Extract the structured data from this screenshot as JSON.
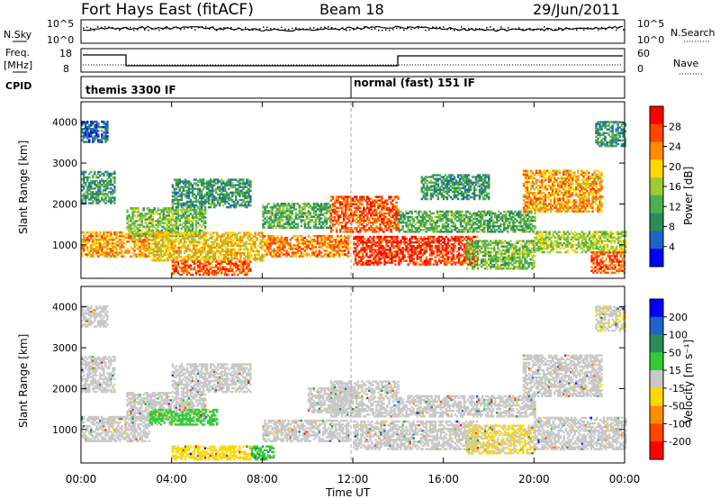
{
  "header": {
    "station": "Fort Hays East (fitACF)",
    "beam": "Beam 18",
    "date": "29/Jun/2011"
  },
  "top_panel": {
    "nsky_label": "N.Sky",
    "nsky_ticks": [
      "10^5",
      "10^0"
    ],
    "nsearch_label": "N.Search",
    "nsearch_ticks": [
      "10^5",
      "10^0"
    ],
    "freq_label": "Freq.",
    "freq_unit": "[MHz]",
    "freq_ticks": [
      "18",
      "8"
    ],
    "nave_label": "Nave",
    "nave_ticks": [
      "60",
      "0"
    ],
    "cpid_label": "CPID",
    "cpid_modes": [
      "themis 3300 IF",
      "normal (fast) 151 IF"
    ]
  },
  "colors": {
    "power": [
      "#0000ff",
      "#1e64c8",
      "#2e8b57",
      "#4caf50",
      "#9acd32",
      "#ffd700",
      "#ff8c00",
      "#ff4500",
      "#ff0000"
    ],
    "velocity": [
      "#0000ff",
      "#1e64c8",
      "#2e8b57",
      "#32cd32",
      "#c8c8c8",
      "#ffd700",
      "#ff8c00",
      "#ff4500",
      "#ff0000"
    ]
  },
  "chart_data": [
    {
      "type": "heatmap",
      "name": "power",
      "ylabel": "Slant Range [km]",
      "xlabel": "Time UT",
      "xticks": [
        "00:00",
        "04:00",
        "08:00",
        "12:00",
        "16:00",
        "20:00",
        "00:00"
      ],
      "yticks": [
        "1000",
        "2000",
        "3000",
        "4000"
      ],
      "ylim": [
        180,
        4500
      ],
      "xlim_hours": [
        0,
        24
      ],
      "colorbar_label": "Power [dB]",
      "colorbar_ticks": [
        "4",
        "8",
        "12",
        "16",
        "20",
        "24",
        "28"
      ],
      "colorbar_range": [
        0,
        32
      ],
      "echo_regions": [
        {
          "t0": 0.0,
          "t1": 1.2,
          "r0": 3500,
          "r1": 4000,
          "value": 6
        },
        {
          "t0": 0.0,
          "t1": 1.5,
          "r0": 2000,
          "r1": 2800,
          "value": 10
        },
        {
          "t0": 0.0,
          "t1": 3.0,
          "r0": 700,
          "r1": 1300,
          "value": 22
        },
        {
          "t0": 2.0,
          "t1": 5.5,
          "r0": 1200,
          "r1": 1900,
          "value": 14
        },
        {
          "t0": 4.0,
          "t1": 7.5,
          "r0": 1900,
          "r1": 2600,
          "value": 10
        },
        {
          "t0": 3.0,
          "t1": 8.0,
          "r0": 600,
          "r1": 1300,
          "value": 20
        },
        {
          "t0": 4.0,
          "t1": 7.5,
          "r0": 250,
          "r1": 600,
          "value": 26
        },
        {
          "t0": 8.0,
          "t1": 11.8,
          "r0": 700,
          "r1": 1200,
          "value": 24
        },
        {
          "t0": 8.0,
          "t1": 11.0,
          "r0": 1400,
          "r1": 2000,
          "value": 12
        },
        {
          "t0": 11.0,
          "t1": 14.0,
          "r0": 1300,
          "r1": 2200,
          "value": 26
        },
        {
          "t0": 12.0,
          "t1": 17.5,
          "r0": 500,
          "r1": 1200,
          "value": 28
        },
        {
          "t0": 14.0,
          "t1": 20.0,
          "r0": 1300,
          "r1": 1800,
          "value": 12
        },
        {
          "t0": 15.0,
          "t1": 18.0,
          "r0": 2100,
          "r1": 2700,
          "value": 10
        },
        {
          "t0": 17.0,
          "t1": 20.0,
          "r0": 400,
          "r1": 1100,
          "value": 14
        },
        {
          "t0": 19.5,
          "t1": 23.0,
          "r0": 1800,
          "r1": 2800,
          "value": 22
        },
        {
          "t0": 20.0,
          "t1": 24.0,
          "r0": 800,
          "r1": 1300,
          "value": 16
        },
        {
          "t0": 22.5,
          "t1": 24.0,
          "r0": 300,
          "r1": 800,
          "value": 26
        },
        {
          "t0": 22.7,
          "t1": 24.0,
          "r0": 3400,
          "r1": 4000,
          "value": 10
        }
      ]
    },
    {
      "type": "heatmap",
      "name": "velocity",
      "ylabel": "Slant Range [km]",
      "xlabel": "Time UT",
      "xticks": [
        "00:00",
        "04:00",
        "08:00",
        "12:00",
        "16:00",
        "20:00",
        "00:00"
      ],
      "yticks": [
        "1000",
        "2000",
        "3000",
        "4000"
      ],
      "ylim": [
        180,
        4500
      ],
      "xlim_hours": [
        0,
        24
      ],
      "colorbar_label": "Velocity [m s⁻¹]",
      "colorbar_ticks": [
        "200",
        "100",
        "50",
        "15",
        "-15",
        "-50",
        "-100",
        "-200"
      ],
      "colorbar_range": [
        -250,
        250
      ],
      "echo_regions": [
        {
          "t0": 0.0,
          "t1": 1.2,
          "r0": 3500,
          "r1": 4000,
          "value": 0
        },
        {
          "t0": 0.0,
          "t1": 1.5,
          "r0": 1900,
          "r1": 2800,
          "value": 0
        },
        {
          "t0": 0.0,
          "t1": 3.0,
          "r0": 700,
          "r1": 1300,
          "value": 0
        },
        {
          "t0": 2.0,
          "t1": 5.5,
          "r0": 1200,
          "r1": 1900,
          "value": 0
        },
        {
          "t0": 4.0,
          "t1": 7.5,
          "r0": 1900,
          "r1": 2600,
          "value": 0
        },
        {
          "t0": 3.0,
          "t1": 6.0,
          "r0": 1100,
          "r1": 1500,
          "value": 45
        },
        {
          "t0": 4.0,
          "t1": 7.5,
          "r0": 250,
          "r1": 600,
          "value": -60
        },
        {
          "t0": 7.5,
          "t1": 8.5,
          "r0": 250,
          "r1": 600,
          "value": 70
        },
        {
          "t0": 8.0,
          "t1": 11.8,
          "r0": 700,
          "r1": 1200,
          "value": 0
        },
        {
          "t0": 10.0,
          "t1": 12.0,
          "r0": 1400,
          "r1": 2000,
          "value": 0
        },
        {
          "t0": 12.0,
          "t1": 17.5,
          "r0": 500,
          "r1": 1200,
          "value": 0
        },
        {
          "t0": 11.0,
          "t1": 14.0,
          "r0": 1300,
          "r1": 2200,
          "value": 0
        },
        {
          "t0": 14.0,
          "t1": 20.0,
          "r0": 1300,
          "r1": 1800,
          "value": 0
        },
        {
          "t0": 17.0,
          "t1": 20.0,
          "r0": 400,
          "r1": 1100,
          "value": -30
        },
        {
          "t0": 19.5,
          "t1": 23.0,
          "r0": 1800,
          "r1": 2800,
          "value": 0
        },
        {
          "t0": 20.0,
          "t1": 24.0,
          "r0": 500,
          "r1": 1300,
          "value": 0
        },
        {
          "t0": 22.7,
          "t1": 24.0,
          "r0": 3400,
          "r1": 4000,
          "value": -20
        }
      ]
    }
  ]
}
